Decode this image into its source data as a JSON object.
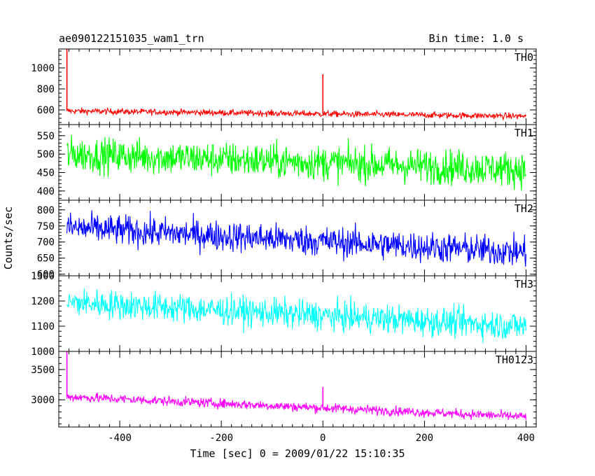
{
  "header": {
    "title": "ae090122151035_wam1_trn",
    "bin_time": "Bin time: 1.0 s"
  },
  "chart_data": {
    "type": "line",
    "title": "ae090122151035_wam1_trn",
    "subtitle": "Bin time: 1.0 s",
    "xlabel": "Time [sec] 0 = 2009/01/22 15:10:35",
    "ylabel": "Counts/sec",
    "xlim": [
      -520,
      420
    ],
    "x_ticks": [
      "-400",
      "-200",
      "0",
      "200",
      "400"
    ],
    "x_tick_values": [
      -400,
      -200,
      0,
      200,
      400
    ],
    "panels": [
      {
        "name": "TH0",
        "color": "#ff0000",
        "ylim": [
          460,
          1180
        ],
        "y_ticks": [
          "1000",
          "800",
          "600"
        ],
        "y_tick_values": [
          1000,
          800,
          600
        ],
        "start_level": 590,
        "end_level": 540,
        "noise": 28,
        "spikes": [
          {
            "x": -504,
            "y": 1180
          },
          {
            "x": 0,
            "y": 940
          }
        ]
      },
      {
        "name": "TH1",
        "color": "#00ff00",
        "ylim": [
          375,
          580
        ],
        "y_ticks": [
          "550",
          "500",
          "450",
          "400"
        ],
        "y_tick_values": [
          550,
          500,
          450,
          400
        ],
        "start_level": 500,
        "end_level": 458,
        "noise": 45,
        "spikes": []
      },
      {
        "name": "TH2",
        "color": "#0000ff",
        "ylim": [
          595,
          830
        ],
        "y_ticks": [
          "800",
          "750",
          "700",
          "650",
          "600"
        ],
        "y_tick_values": [
          800,
          750,
          700,
          650,
          600
        ],
        "start_level": 745,
        "end_level": 668,
        "noise": 45,
        "spikes": []
      },
      {
        "name": "TH3",
        "color": "#00ffff",
        "ylim": [
          1000,
          1300
        ],
        "y_ticks": [
          "1300",
          "1200",
          "1100",
          "1000"
        ],
        "y_tick_values": [
          1300,
          1200,
          1100,
          1000
        ],
        "start_level": 1195,
        "end_level": 1100,
        "noise": 55,
        "spikes": []
      },
      {
        "name": "TH0123",
        "color": "#ff00ff",
        "ylim": [
          2550,
          3800
        ],
        "y_ticks": [
          "3500",
          "3000"
        ],
        "y_tick_values": [
          3500,
          3000
        ],
        "start_level": 3050,
        "end_level": 2720,
        "noise": 75,
        "spikes": [
          {
            "x": -504,
            "y": 3800
          },
          {
            "x": 0,
            "y": 3210
          }
        ]
      }
    ]
  }
}
